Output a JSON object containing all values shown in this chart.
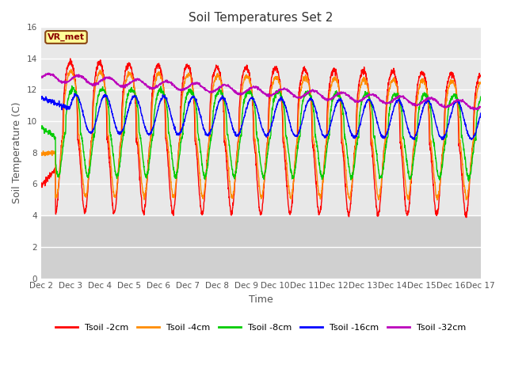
{
  "title": "Soil Temperatures Set 2",
  "xlabel": "Time",
  "ylabel": "Soil Temperature (C)",
  "ylim": [
    0,
    16
  ],
  "yticks": [
    0,
    2,
    4,
    6,
    8,
    10,
    12,
    14,
    16
  ],
  "xtick_labels": [
    "Dec 2",
    "Dec 3",
    "Dec 4",
    "Dec 5",
    "Dec 6",
    "Dec 7",
    "Dec 8",
    "Dec 9",
    "Dec 10",
    "Dec 11",
    "Dec 12",
    "Dec 13",
    "Dec 14",
    "Dec 15",
    "Dec 16",
    "Dec 17"
  ],
  "annotation_text": "VR_met",
  "colors": {
    "2cm": "#ff0000",
    "4cm": "#ff8c00",
    "8cm": "#00cc00",
    "16cm": "#0000ff",
    "32cm": "#bb00bb"
  },
  "legend_labels": [
    "Tsoil -2cm",
    "Tsoil -4cm",
    "Tsoil -8cm",
    "Tsoil -16cm",
    "Tsoil -32cm"
  ],
  "bg_color_plot": "#e8e8e8",
  "bg_color_outside": "#d4d4d4",
  "fig_color": "#ffffff",
  "n_days": 15,
  "pts_per_day": 144
}
